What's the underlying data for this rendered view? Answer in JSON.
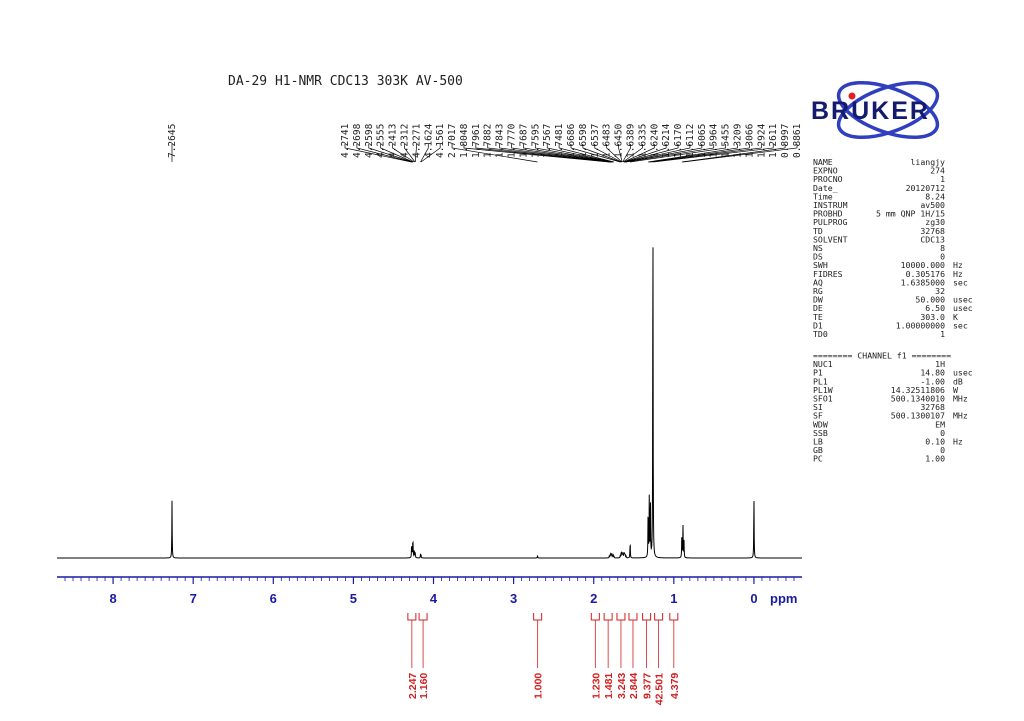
{
  "header": {
    "title": "DA-29    H1-NMR   CDC13   303K   AV-500"
  },
  "brand": {
    "name": "BRUKER",
    "color": "#141a6e",
    "orbit_color": "#2f3fbf",
    "dot_color": "#e02020"
  },
  "params_block1": [
    [
      "NAME",
      "liangjy",
      ""
    ],
    [
      "EXPNO",
      "274",
      ""
    ],
    [
      "PROCNO",
      "1",
      ""
    ],
    [
      "Date_",
      "20120712",
      ""
    ],
    [
      "Time",
      "8.24",
      ""
    ],
    [
      "INSTRUM",
      "av500",
      ""
    ],
    [
      "PROBHD",
      "5 mm QNP 1H/15",
      ""
    ],
    [
      "PULPROG",
      "zg30",
      ""
    ],
    [
      "TD",
      "32768",
      ""
    ],
    [
      "SOLVENT",
      "CDC13",
      ""
    ],
    [
      "NS",
      "8",
      ""
    ],
    [
      "DS",
      "0",
      ""
    ],
    [
      "SWH",
      "10000.000",
      "Hz"
    ],
    [
      "FIDRES",
      "0.305176",
      "Hz"
    ],
    [
      "AQ",
      "1.6385000",
      "sec"
    ],
    [
      "RG",
      "32",
      ""
    ],
    [
      "DW",
      "50.000",
      "usec"
    ],
    [
      "DE",
      "6.50",
      "usec"
    ],
    [
      "TE",
      "303.0",
      "K"
    ],
    [
      "D1",
      "1.00000000",
      "sec"
    ],
    [
      "TD0",
      "1",
      ""
    ]
  ],
  "channel_header": "======== CHANNEL f1 ========",
  "params_block2": [
    [
      "NUC1",
      "1H",
      ""
    ],
    [
      "P1",
      "14.80",
      "usec"
    ],
    [
      "PL1",
      "-1.00",
      "dB"
    ],
    [
      "PL1W",
      "14.32511806",
      "W"
    ],
    [
      "SFO1",
      "500.1340010",
      "MHz"
    ],
    [
      "SI",
      "32768",
      ""
    ],
    [
      "SF",
      "500.1300107",
      "MHz"
    ],
    [
      "WDW",
      "EM",
      ""
    ],
    [
      "SSB",
      "0",
      ""
    ],
    [
      "LB",
      "0.10",
      "Hz"
    ],
    [
      "GB",
      "0",
      ""
    ],
    [
      "PC",
      "1.00",
      ""
    ]
  ],
  "chart_data": {
    "type": "line",
    "xlabel": "ppm",
    "xlim": [
      8.7,
      -0.6
    ],
    "x_ticks": [
      8,
      7,
      6,
      5,
      4,
      3,
      2,
      1,
      0
    ],
    "axis_color": "#1a1aa6",
    "integral_color": "#d21f1f",
    "peaks": [
      {
        "ppm": 7.2645,
        "height": 0.155
      },
      {
        "ppm": 4.2741,
        "height": 0.022
      },
      {
        "ppm": 4.2698,
        "height": 0.028
      },
      {
        "ppm": 4.2598,
        "height": 0.03
      },
      {
        "ppm": 4.2555,
        "height": 0.032
      },
      {
        "ppm": 4.2413,
        "height": 0.02
      },
      {
        "ppm": 4.2312,
        "height": 0.012
      },
      {
        "ppm": 4.2271,
        "height": 0.008
      },
      {
        "ppm": 4.1624,
        "height": 0.01
      },
      {
        "ppm": 4.1561,
        "height": 0.008
      },
      {
        "ppm": 2.7017,
        "height": 0.007
      },
      {
        "ppm": 1.8048,
        "height": 0.006
      },
      {
        "ppm": 1.7961,
        "height": 0.008
      },
      {
        "ppm": 1.7882,
        "height": 0.009
      },
      {
        "ppm": 1.7843,
        "height": 0.008
      },
      {
        "ppm": 1.777,
        "height": 0.008
      },
      {
        "ppm": 1.7687,
        "height": 0.007
      },
      {
        "ppm": 1.7595,
        "height": 0.006
      },
      {
        "ppm": 1.7567,
        "height": 0.006
      },
      {
        "ppm": 1.7481,
        "height": 0.005
      },
      {
        "ppm": 1.6686,
        "height": 0.007
      },
      {
        "ppm": 1.6598,
        "height": 0.008
      },
      {
        "ppm": 1.6537,
        "height": 0.01
      },
      {
        "ppm": 1.6483,
        "height": 0.01
      },
      {
        "ppm": 1.645,
        "height": 0.009
      },
      {
        "ppm": 1.6389,
        "height": 0.008
      },
      {
        "ppm": 1.6335,
        "height": 0.008
      },
      {
        "ppm": 1.624,
        "height": 0.008
      },
      {
        "ppm": 1.6214,
        "height": 0.008
      },
      {
        "ppm": 1.617,
        "height": 0.009
      },
      {
        "ppm": 1.6112,
        "height": 0.008
      },
      {
        "ppm": 1.6065,
        "height": 0.007
      },
      {
        "ppm": 1.5964,
        "height": 0.006
      },
      {
        "ppm": 1.5455,
        "height": 0.045
      },
      {
        "ppm": 1.3209,
        "height": 0.14
      },
      {
        "ppm": 1.3066,
        "height": 0.16
      },
      {
        "ppm": 1.2924,
        "height": 0.17
      },
      {
        "ppm": 1.2611,
        "height": 1.0
      },
      {
        "ppm": 0.8997,
        "height": 0.07
      },
      {
        "ppm": 0.8861,
        "height": 0.09
      },
      {
        "ppm": 0.873,
        "height": 0.045
      },
      {
        "ppm": 0.0,
        "height": 0.17
      }
    ],
    "peak_labels": [
      {
        "text": "7.2645",
        "ppm": 7.2645,
        "group": 0
      },
      {
        "text": "4.2741",
        "ppm": 4.2741,
        "group": 1
      },
      {
        "text": "4.2698",
        "ppm": 4.2698,
        "group": 1
      },
      {
        "text": "4.2598",
        "ppm": 4.2598,
        "group": 1
      },
      {
        "text": "4.2555",
        "ppm": 4.2555,
        "group": 1
      },
      {
        "text": "4.2413",
        "ppm": 4.2413,
        "group": 1
      },
      {
        "text": "4.2312",
        "ppm": 4.2312,
        "group": 1
      },
      {
        "text": "4.2271",
        "ppm": 4.2271,
        "group": 1
      },
      {
        "text": "4.1624",
        "ppm": 4.1624,
        "group": 1
      },
      {
        "text": "4.1561",
        "ppm": 4.1561,
        "group": 1
      },
      {
        "text": "2.7017",
        "ppm": 2.7017,
        "group": 2
      },
      {
        "text": "1.8048",
        "ppm": 1.8048,
        "group": 2
      },
      {
        "text": "1.7961",
        "ppm": 1.7961,
        "group": 2
      },
      {
        "text": "1.7882",
        "ppm": 1.7882,
        "group": 2
      },
      {
        "text": "1.7843",
        "ppm": 1.7843,
        "group": 2
      },
      {
        "text": "1.7770",
        "ppm": 1.777,
        "group": 2
      },
      {
        "text": "1.7687",
        "ppm": 1.7687,
        "group": 2
      },
      {
        "text": "1.7595",
        "ppm": 1.7595,
        "group": 2
      },
      {
        "text": "1.7567",
        "ppm": 1.7567,
        "group": 2
      },
      {
        "text": "1.7481",
        "ppm": 1.7481,
        "group": 2
      },
      {
        "text": "1.6686",
        "ppm": 1.6686,
        "group": 2
      },
      {
        "text": "1.6598",
        "ppm": 1.6598,
        "group": 2
      },
      {
        "text": "1.6537",
        "ppm": 1.6537,
        "group": 2
      },
      {
        "text": "1.6483",
        "ppm": 1.6483,
        "group": 2
      },
      {
        "text": "1.6450",
        "ppm": 1.645,
        "group": 2
      },
      {
        "text": "1.6389",
        "ppm": 1.6389,
        "group": 2
      },
      {
        "text": "1.6335",
        "ppm": 1.6335,
        "group": 2
      },
      {
        "text": "1.6240",
        "ppm": 1.624,
        "group": 2
      },
      {
        "text": "1.6214",
        "ppm": 1.6214,
        "group": 2
      },
      {
        "text": "1.6170",
        "ppm": 1.617,
        "group": 2
      },
      {
        "text": "1.6112",
        "ppm": 1.6112,
        "group": 2
      },
      {
        "text": "1.6065",
        "ppm": 1.6065,
        "group": 2
      },
      {
        "text": "1.5964",
        "ppm": 1.5964,
        "group": 2
      },
      {
        "text": "1.5455",
        "ppm": 1.5455,
        "group": 2
      },
      {
        "text": "1.3209",
        "ppm": 1.3209,
        "group": 3
      },
      {
        "text": "1.3066",
        "ppm": 1.3066,
        "group": 3
      },
      {
        "text": "1.2924",
        "ppm": 1.2924,
        "group": 3
      },
      {
        "text": "1.2611",
        "ppm": 1.2611,
        "group": 3
      },
      {
        "text": "0.8997",
        "ppm": 0.8997,
        "group": 4
      },
      {
        "text": "0.8861",
        "ppm": 0.8861,
        "group": 4
      }
    ],
    "integrals": [
      {
        "text": "2.247",
        "ppm": 4.27
      },
      {
        "text": "1.160",
        "ppm": 4.13
      },
      {
        "text": "1.000",
        "ppm": 2.7
      },
      {
        "text": "1.230",
        "ppm": 1.98
      },
      {
        "text": "1.481",
        "ppm": 1.82
      },
      {
        "text": "3.243",
        "ppm": 1.66
      },
      {
        "text": "2.844",
        "ppm": 1.51
      },
      {
        "text": "9.377",
        "ppm": 1.34
      },
      {
        "text": "42.501",
        "ppm": 1.19
      },
      {
        "text": "4.379",
        "ppm": 1.0
      }
    ]
  }
}
